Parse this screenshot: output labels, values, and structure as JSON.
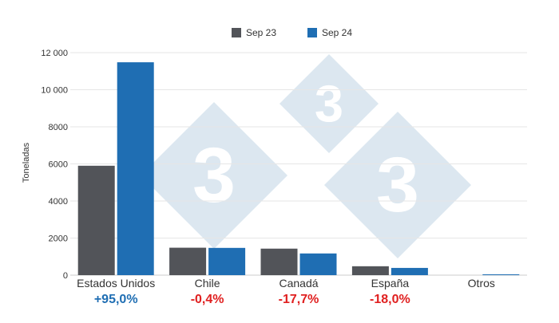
{
  "chart_data": {
    "type": "bar",
    "categories": [
      "Estados Unidos",
      "Chile",
      "Canadá",
      "España",
      "Otros"
    ],
    "series": [
      {
        "name": "Sep 23",
        "color": "#525459",
        "values": [
          5900,
          1480,
          1430,
          480,
          0
        ]
      },
      {
        "name": "Sep 24",
        "color": "#1f6eb3",
        "values": [
          11480,
          1470,
          1170,
          390,
          20
        ]
      }
    ],
    "ylabel": "Toneladas",
    "ylim": [
      0,
      12000
    ],
    "yticks": [
      0,
      2000,
      4000,
      6000,
      8000,
      10000,
      12000
    ],
    "ytick_labels": [
      "0",
      "2000",
      "4000",
      "6000",
      "8000",
      "10 000",
      "12 000"
    ],
    "grid": true,
    "legend": "top-center",
    "changes": [
      {
        "category": "Estados Unidos",
        "label": "+95,0%",
        "color": "#1f6eb3"
      },
      {
        "category": "Chile",
        "label": "-0,4%",
        "color": "#e02020"
      },
      {
        "category": "Canadá",
        "label": "-17,7%",
        "color": "#e02020"
      },
      {
        "category": "España",
        "label": "-18,0%",
        "color": "#e02020"
      }
    ]
  },
  "watermark": {
    "glyph": "3",
    "color": "#dce7f0"
  }
}
